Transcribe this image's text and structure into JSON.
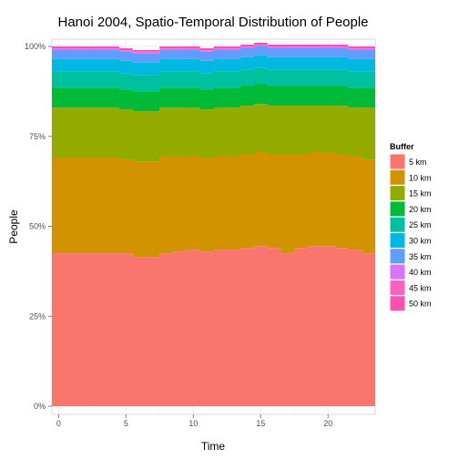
{
  "chart_data": {
    "type": "area",
    "title": "Hanoi 2004, Spatio-Temporal Distribution of People",
    "xlabel": "Time",
    "ylabel": "People",
    "xlim": [
      -0.5,
      23.5
    ],
    "ylim": [
      0,
      1
    ],
    "x_ticks": [
      0,
      5,
      10,
      15,
      20
    ],
    "y_ticks": [
      0,
      0.25,
      0.5,
      0.75,
      1.0
    ],
    "y_tick_labels": [
      "0%",
      "25%",
      "50%",
      "75%",
      "100%"
    ],
    "grid": true,
    "stacked": true,
    "legend_title": "Buffer",
    "legend_position": "right",
    "x": [
      0,
      1,
      2,
      3,
      4,
      5,
      6,
      7,
      8,
      9,
      10,
      11,
      12,
      13,
      14,
      15,
      16,
      17,
      18,
      19,
      20,
      21,
      22,
      23
    ],
    "series": [
      {
        "name": "5 km",
        "color": "#F8766D",
        "values": [
          0.425,
          0.425,
          0.425,
          0.425,
          0.425,
          0.425,
          0.415,
          0.415,
          0.425,
          0.43,
          0.435,
          0.43,
          0.435,
          0.435,
          0.44,
          0.445,
          0.44,
          0.425,
          0.44,
          0.445,
          0.445,
          0.44,
          0.435,
          0.425
        ]
      },
      {
        "name": "10 km",
        "color": "#D39200",
        "values": [
          0.265,
          0.265,
          0.265,
          0.265,
          0.265,
          0.26,
          0.265,
          0.265,
          0.27,
          0.265,
          0.26,
          0.26,
          0.26,
          0.26,
          0.26,
          0.26,
          0.26,
          0.275,
          0.26,
          0.26,
          0.26,
          0.26,
          0.26,
          0.26
        ]
      },
      {
        "name": "15 km",
        "color": "#93AA00",
        "values": [
          0.14,
          0.14,
          0.14,
          0.14,
          0.14,
          0.14,
          0.14,
          0.14,
          0.135,
          0.135,
          0.135,
          0.135,
          0.135,
          0.135,
          0.135,
          0.135,
          0.135,
          0.135,
          0.135,
          0.13,
          0.13,
          0.135,
          0.135,
          0.145
        ]
      },
      {
        "name": "20 km",
        "color": "#00BA38",
        "values": [
          0.055,
          0.055,
          0.055,
          0.055,
          0.055,
          0.055,
          0.055,
          0.055,
          0.055,
          0.055,
          0.055,
          0.055,
          0.055,
          0.055,
          0.055,
          0.055,
          0.055,
          0.055,
          0.055,
          0.055,
          0.055,
          0.055,
          0.055,
          0.055
        ]
      },
      {
        "name": "25 km",
        "color": "#00C19F",
        "values": [
          0.045,
          0.045,
          0.045,
          0.045,
          0.045,
          0.045,
          0.045,
          0.045,
          0.045,
          0.045,
          0.045,
          0.045,
          0.045,
          0.045,
          0.045,
          0.045,
          0.045,
          0.045,
          0.045,
          0.045,
          0.045,
          0.045,
          0.045,
          0.045
        ]
      },
      {
        "name": "30 km",
        "color": "#00B9E3",
        "values": [
          0.035,
          0.035,
          0.035,
          0.035,
          0.035,
          0.035,
          0.035,
          0.035,
          0.035,
          0.035,
          0.035,
          0.035,
          0.035,
          0.035,
          0.035,
          0.035,
          0.035,
          0.035,
          0.035,
          0.035,
          0.035,
          0.035,
          0.035,
          0.035
        ]
      },
      {
        "name": "35 km",
        "color": "#619CFF",
        "values": [
          0.025,
          0.025,
          0.025,
          0.025,
          0.025,
          0.025,
          0.025,
          0.025,
          0.025,
          0.025,
          0.025,
          0.025,
          0.025,
          0.025,
          0.025,
          0.025,
          0.025,
          0.025,
          0.025,
          0.025,
          0.025,
          0.025,
          0.025,
          0.025
        ]
      },
      {
        "name": "40 km",
        "color": "#DB72FB",
        "values": [
          0.003,
          0.003,
          0.003,
          0.003,
          0.003,
          0.003,
          0.003,
          0.003,
          0.003,
          0.003,
          0.003,
          0.003,
          0.003,
          0.003,
          0.003,
          0.003,
          0.003,
          0.003,
          0.003,
          0.003,
          0.003,
          0.003,
          0.003,
          0.003
        ]
      },
      {
        "name": "45 km",
        "color": "#FF61C3",
        "values": [
          0.002,
          0.002,
          0.002,
          0.002,
          0.002,
          0.002,
          0.002,
          0.002,
          0.002,
          0.002,
          0.002,
          0.002,
          0.002,
          0.002,
          0.002,
          0.002,
          0.002,
          0.002,
          0.002,
          0.002,
          0.002,
          0.002,
          0.002,
          0.002
        ]
      },
      {
        "name": "50 km",
        "color": "#FF4FB0",
        "values": [
          0.005,
          0.005,
          0.005,
          0.005,
          0.005,
          0.005,
          0.005,
          0.005,
          0.005,
          0.005,
          0.005,
          0.005,
          0.005,
          0.005,
          0.005,
          0.005,
          0.005,
          0.005,
          0.005,
          0.005,
          0.005,
          0.005,
          0.005,
          0.005
        ]
      }
    ]
  }
}
